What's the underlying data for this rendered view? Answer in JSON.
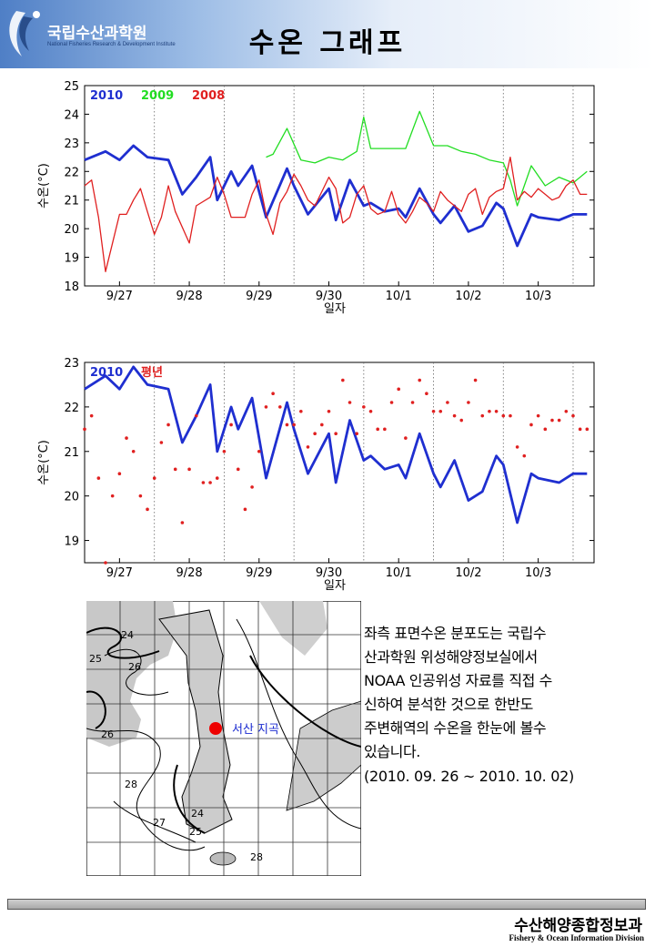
{
  "header": {
    "org_name": "국립수산과학원",
    "org_subtitle": "National Fisheries Research & Development Institute",
    "title": "수온 그래프",
    "primary_color": "#4f7fc6"
  },
  "chart_data": [
    {
      "type": "line",
      "ylabel": "수온(°C)",
      "xlabel": "일자",
      "ylim": [
        18,
        25
      ],
      "yticks": [
        18,
        19,
        20,
        21,
        22,
        23,
        24,
        25
      ],
      "xlim": [
        0,
        7.3
      ],
      "xtick_labels": [
        "9/27",
        "9/28",
        "9/29",
        "9/30",
        "10/1",
        "10/2",
        "10/3"
      ],
      "legend_placement": "top-left",
      "series": [
        {
          "name": "2010",
          "color": "#1f2fd0",
          "style": "line",
          "x": [
            0,
            0.3,
            0.5,
            0.7,
            0.9,
            1.2,
            1.4,
            1.6,
            1.8,
            1.9,
            2.1,
            2.2,
            2.4,
            2.6,
            2.9,
            3.0,
            3.2,
            3.5,
            3.6,
            3.8,
            4.0,
            4.1,
            4.3,
            4.5,
            4.6,
            4.8,
            5.0,
            5.1,
            5.3,
            5.5,
            5.7,
            5.9,
            6.0,
            6.2,
            6.4,
            6.5,
            6.8,
            7.0,
            7.2
          ],
          "values": [
            22.4,
            22.7,
            22.4,
            22.9,
            22.5,
            22.4,
            21.2,
            21.8,
            22.5,
            21.0,
            22.0,
            21.5,
            22.2,
            20.4,
            22.1,
            21.5,
            20.5,
            21.4,
            20.3,
            21.7,
            20.8,
            20.9,
            20.6,
            20.7,
            20.4,
            21.4,
            20.5,
            20.2,
            20.8,
            19.9,
            20.1,
            20.9,
            20.7,
            19.4,
            20.5,
            20.4,
            20.3,
            20.5,
            20.5
          ]
        },
        {
          "name": "2009",
          "color": "#22dd22",
          "style": "line",
          "x": [
            2.6,
            2.7,
            2.9,
            3.1,
            3.3,
            3.5,
            3.7,
            3.9,
            4.0,
            4.1,
            4.3,
            4.5,
            4.6,
            4.8,
            5.0,
            5.2,
            5.4,
            5.6,
            5.8,
            6.0,
            6.1,
            6.2,
            6.4,
            6.6,
            6.8,
            7.0,
            7.2
          ],
          "values": [
            22.5,
            22.6,
            23.5,
            22.4,
            22.3,
            22.5,
            22.4,
            22.7,
            23.9,
            22.8,
            22.8,
            22.8,
            22.8,
            24.1,
            22.9,
            22.9,
            22.7,
            22.6,
            22.4,
            22.3,
            21.7,
            20.8,
            22.2,
            21.5,
            21.8,
            21.6,
            22.0
          ]
        },
        {
          "name": "2008",
          "color": "#e02020",
          "style": "line",
          "x": [
            0,
            0.1,
            0.2,
            0.3,
            0.5,
            0.6,
            0.7,
            0.8,
            0.9,
            1.0,
            1.1,
            1.2,
            1.3,
            1.5,
            1.6,
            1.8,
            1.9,
            2.0,
            2.1,
            2.3,
            2.4,
            2.5,
            2.6,
            2.7,
            2.8,
            2.9,
            3.0,
            3.1,
            3.2,
            3.3,
            3.5,
            3.6,
            3.7,
            3.8,
            3.9,
            4.0,
            4.1,
            4.2,
            4.3,
            4.4,
            4.5,
            4.6,
            4.7,
            4.8,
            4.9,
            5.0,
            5.1,
            5.2,
            5.3,
            5.4,
            5.5,
            5.6,
            5.7,
            5.8,
            5.9,
            6.0,
            6.1,
            6.2,
            6.3,
            6.4,
            6.5,
            6.6,
            6.7,
            6.8,
            6.9,
            7.0,
            7.1,
            7.2
          ],
          "values": [
            21.5,
            21.7,
            20.4,
            18.5,
            20.5,
            20.5,
            21.0,
            21.4,
            20.6,
            19.8,
            20.4,
            21.5,
            20.6,
            19.5,
            20.8,
            21.1,
            21.8,
            21.2,
            20.4,
            20.4,
            21.2,
            21.7,
            20.5,
            19.8,
            20.9,
            21.3,
            21.9,
            21.5,
            21.0,
            20.8,
            21.8,
            21.4,
            20.2,
            20.4,
            21.2,
            21.5,
            20.7,
            20.5,
            20.6,
            21.3,
            20.5,
            20.2,
            20.6,
            21.1,
            20.9,
            20.6,
            21.3,
            21.0,
            20.8,
            20.6,
            21.2,
            21.4,
            20.5,
            21.1,
            21.3,
            21.4,
            22.5,
            21.0,
            21.3,
            21.1,
            21.4,
            21.2,
            21.0,
            21.1,
            21.5,
            21.7,
            21.2,
            21.2
          ]
        }
      ]
    },
    {
      "type": "line",
      "ylabel": "수온(°C)",
      "xlabel": "일자",
      "ylim": [
        18.5,
        23
      ],
      "yticks": [
        19,
        20,
        21,
        22,
        23
      ],
      "xlim": [
        0,
        7.3
      ],
      "xtick_labels": [
        "9/27",
        "9/28",
        "9/29",
        "9/30",
        "10/1",
        "10/2",
        "10/3"
      ],
      "legend_placement": "top-left",
      "series": [
        {
          "name": "2010",
          "color": "#1f2fd0",
          "style": "line",
          "x": [
            0,
            0.3,
            0.5,
            0.7,
            0.9,
            1.2,
            1.4,
            1.6,
            1.8,
            1.9,
            2.1,
            2.2,
            2.4,
            2.6,
            2.9,
            3.0,
            3.2,
            3.5,
            3.6,
            3.8,
            4.0,
            4.1,
            4.3,
            4.5,
            4.6,
            4.8,
            5.0,
            5.1,
            5.3,
            5.5,
            5.7,
            5.9,
            6.0,
            6.2,
            6.4,
            6.5,
            6.8,
            7.0,
            7.2
          ],
          "values": [
            22.4,
            22.7,
            22.4,
            22.9,
            22.5,
            22.4,
            21.2,
            21.8,
            22.5,
            21.0,
            22.0,
            21.5,
            22.2,
            20.4,
            22.1,
            21.5,
            20.5,
            21.4,
            20.3,
            21.7,
            20.8,
            20.9,
            20.6,
            20.7,
            20.4,
            21.4,
            20.5,
            20.2,
            20.8,
            19.9,
            20.1,
            20.9,
            20.7,
            19.4,
            20.5,
            20.4,
            20.3,
            20.5,
            20.5
          ]
        },
        {
          "name": "평년",
          "color": "#e02020",
          "style": "dots",
          "x": [
            0,
            0.1,
            0.2,
            0.3,
            0.4,
            0.5,
            0.6,
            0.7,
            0.8,
            0.9,
            1.0,
            1.1,
            1.2,
            1.3,
            1.4,
            1.5,
            1.6,
            1.7,
            1.8,
            1.9,
            2.0,
            2.1,
            2.2,
            2.3,
            2.4,
            2.5,
            2.6,
            2.7,
            2.8,
            2.9,
            3.0,
            3.1,
            3.2,
            3.3,
            3.4,
            3.5,
            3.6,
            3.7,
            3.8,
            3.9,
            4.0,
            4.1,
            4.2,
            4.3,
            4.4,
            4.5,
            4.6,
            4.7,
            4.8,
            4.9,
            5.0,
            5.1,
            5.2,
            5.3,
            5.4,
            5.5,
            5.6,
            5.7,
            5.8,
            5.9,
            6.0,
            6.1,
            6.2,
            6.3,
            6.4,
            6.5,
            6.6,
            6.7,
            6.8,
            6.9,
            7.0,
            7.1,
            7.2
          ],
          "values": [
            21.5,
            21.8,
            20.4,
            18.5,
            20.0,
            20.5,
            21.3,
            21.0,
            20.0,
            19.7,
            20.4,
            21.2,
            21.6,
            20.6,
            19.4,
            20.6,
            21.8,
            20.3,
            20.3,
            20.4,
            21.0,
            21.6,
            20.6,
            19.7,
            20.2,
            21.0,
            22.0,
            22.3,
            22.0,
            21.6,
            21.6,
            21.9,
            21.1,
            21.4,
            21.6,
            21.9,
            21.4,
            22.6,
            22.1,
            21.4,
            22.0,
            21.9,
            21.5,
            21.5,
            22.1,
            22.4,
            21.3,
            22.1,
            22.6,
            22.3,
            21.9,
            21.9,
            22.1,
            21.8,
            21.7,
            22.1,
            22.6,
            21.8,
            21.9,
            21.9,
            21.8,
            21.8,
            21.1,
            20.9,
            21.6,
            21.8,
            21.5,
            21.7,
            21.7,
            21.9,
            21.8,
            21.5,
            21.5
          ]
        }
      ]
    }
  ],
  "map": {
    "contour_labels": [
      "24",
      "25",
      "26",
      "26",
      "28",
      "27",
      "24",
      "25",
      "28"
    ],
    "station_label": "서산 지곡",
    "station_color": "#ee0000"
  },
  "description": {
    "lines": [
      "좌측 표면수온 분포도는 국립수",
      "산과학원 위성해양정보실에서",
      "NOAA 인공위성 자료를 직접 수",
      "신하여 분석한 것으로 한반도",
      "주변해역의 수온을 한눈에 볼수",
      "있습니다."
    ],
    "period": "(2010. 09. 26 ~ 2010. 10. 02)"
  },
  "footer": {
    "division_ko": "수산해양종합정보과",
    "division_en": "Fishery & Ocean Information Division"
  }
}
